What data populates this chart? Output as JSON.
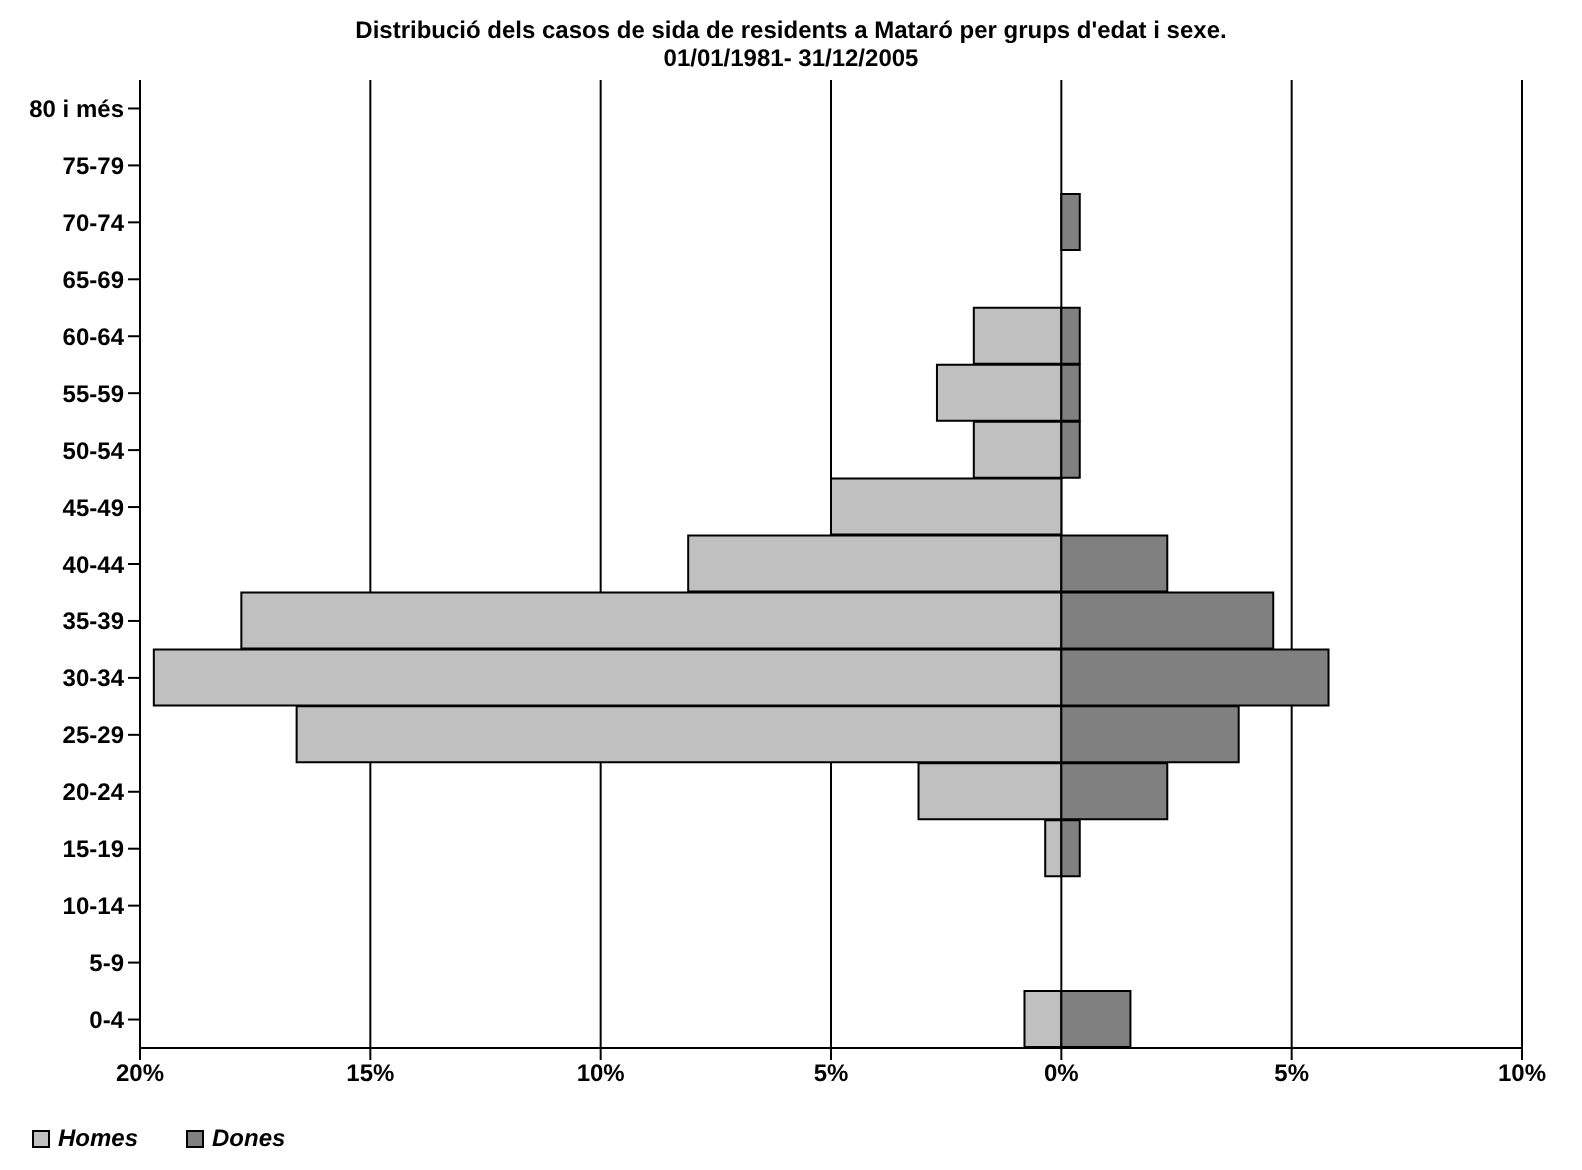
{
  "chart_data": {
    "type": "bar",
    "orientation": "horizontal",
    "stacked": true,
    "title": "Distribució dels casos de sida de residents a Mataró per grups d'edat i sexe.",
    "subtitle": "01/01/1981- 31/12/2005",
    "categories": [
      "80 i més",
      "75-79",
      "70-74",
      "65-69",
      "60-64",
      "55-59",
      "50-54",
      "45-49",
      "40-44",
      "35-39",
      "30-34",
      "25-29",
      "20-24",
      "15-19",
      "10-14",
      "5-9",
      "0-4"
    ],
    "series": [
      {
        "name": "Homes",
        "color": "#c0c0c0",
        "values": [
          null,
          null,
          null,
          null,
          -1.9,
          -2.7,
          -1.9,
          -5.0,
          -8.1,
          -17.8,
          -19.7,
          -16.6,
          -3.1,
          -0.35,
          null,
          null,
          -0.8
        ]
      },
      {
        "name": "Dones",
        "color": "#808080",
        "values": [
          null,
          null,
          0.4,
          null,
          0.4,
          0.4,
          0.4,
          null,
          2.3,
          4.6,
          5.8,
          3.85,
          2.3,
          0.4,
          null,
          null,
          1.5
        ]
      }
    ],
    "xlim": [
      -20,
      10
    ],
    "xticks": [
      {
        "value": -20,
        "label": "20%"
      },
      {
        "value": -15,
        "label": "15%"
      },
      {
        "value": -10,
        "label": "10%"
      },
      {
        "value": -5,
        "label": "5%"
      },
      {
        "value": 0,
        "label": "0%"
      },
      {
        "value": 5,
        "label": "5%"
      },
      {
        "value": 10,
        "label": "10%"
      }
    ],
    "grid": "x",
    "legend": "bottom left"
  }
}
